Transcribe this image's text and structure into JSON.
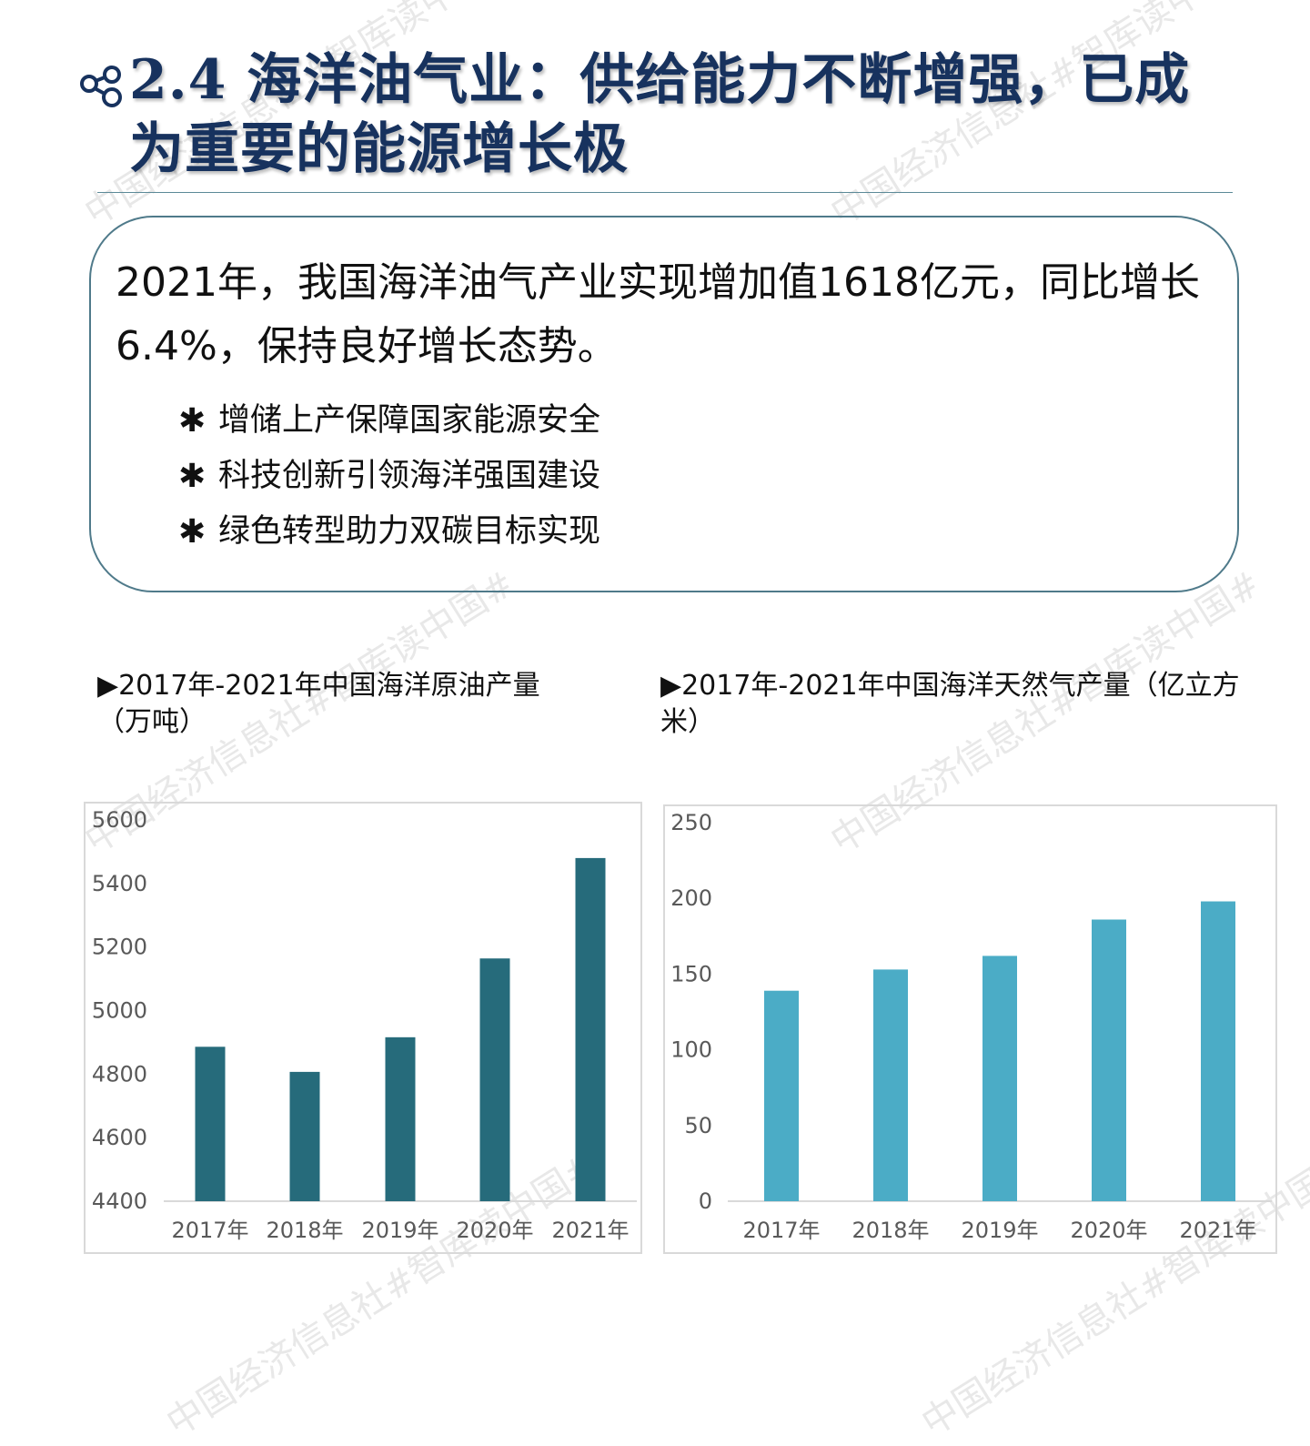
{
  "header": {
    "title": "2.4 海洋油气业：供给能力不断增强，已成为重要的能源增长极",
    "icon": "share-nodes-icon"
  },
  "summary": {
    "lead": "2021年，我国海洋油气产业实现增加值1618亿元，同比增长6.4%，保持良好增长态势。",
    "bullet_marker": "✱",
    "bullets": [
      "增储上产保障国家能源安全",
      "科技创新引领海洋强国建设",
      "绿色转型助力双碳目标实现"
    ]
  },
  "watermark": "中国经济信息社#智库读中国#",
  "colors": {
    "title": "#17325e",
    "oil_bar": "#266b7b",
    "gas_bar": "#4bacc6"
  },
  "chart_data": [
    {
      "type": "bar",
      "title": "▶2017年-2021年中国海洋原油产量（万吨）",
      "categories": [
        "2017年",
        "2018年",
        "2019年",
        "2020年",
        "2021年"
      ],
      "values": [
        4886,
        4807,
        4916,
        5164,
        5480
      ],
      "ylim": [
        4400,
        5600
      ],
      "yticks": [
        4400,
        4600,
        4800,
        5000,
        5200,
        5400,
        5600
      ],
      "grid": false
    },
    {
      "type": "bar",
      "title": "▶2017年-2021年中国海洋天然气产量（亿立方米）",
      "categories": [
        "2017年",
        "2018年",
        "2019年",
        "2020年",
        "2021年"
      ],
      "values": [
        139,
        153,
        162,
        186,
        198
      ],
      "ylim": [
        0,
        250
      ],
      "yticks": [
        0,
        50,
        100,
        150,
        200,
        250
      ],
      "grid": false
    }
  ]
}
